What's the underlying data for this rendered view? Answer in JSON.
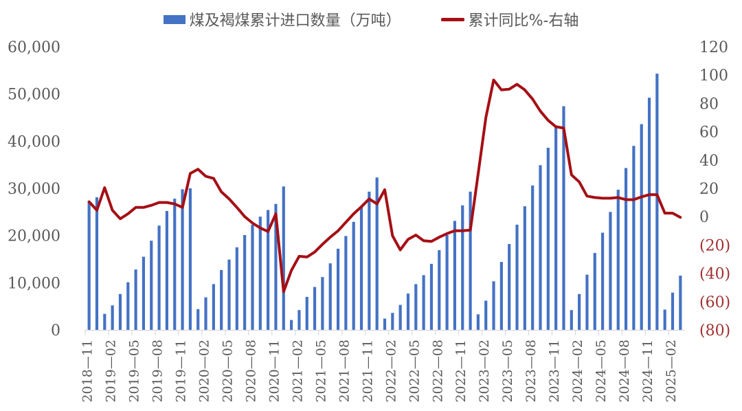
{
  "legend": {
    "bar_label": "煤及褐煤累计进口数量（万吨）",
    "line_label": "累计同比%-右轴"
  },
  "colors": {
    "bar": "#4472C4",
    "line": "#A50F15",
    "axis_text": "#595959",
    "negative_text": "#A03030",
    "axis_line": "#D9D9D9"
  },
  "chart_data": {
    "type": "bar+line",
    "title": "",
    "xlabel": "",
    "ylabel": "",
    "y2label": "",
    "ylim": [
      0,
      60000
    ],
    "y2lim": [
      -80,
      120
    ],
    "yticks": [
      "0",
      "10,000",
      "20,000",
      "30,000",
      "40,000",
      "50,000",
      "60,000"
    ],
    "y2ticks": [
      "(80)",
      "(60)",
      "(40)",
      "(20)",
      "0",
      "20",
      "40",
      "60",
      "80",
      "100",
      "120"
    ],
    "grid": false,
    "legend_position": "top",
    "xtick_labels": [
      "2018-11",
      "2019-02",
      "2019-05",
      "2019-08",
      "2019-11",
      "2020-02",
      "2020-05",
      "2020-08",
      "2020-11",
      "2021-02",
      "2021-05",
      "2021-08",
      "2021-11",
      "2022-02",
      "2022-05",
      "2022-08",
      "2022-11",
      "2023-02",
      "2023-05",
      "2023-08",
      "2023-11",
      "2024-02",
      "2024-05",
      "2024-08",
      "2024-11",
      "2025-02"
    ],
    "categories": [
      "2018-11",
      "2018-12",
      "2019-01",
      "2019-02",
      "2019-03",
      "2019-04",
      "2019-05",
      "2019-06",
      "2019-07",
      "2019-08",
      "2019-09",
      "2019-10",
      "2019-11",
      "2019-12",
      "2020-01",
      "2020-02",
      "2020-03",
      "2020-04",
      "2020-05",
      "2020-06",
      "2020-07",
      "2020-08",
      "2020-09",
      "2020-10",
      "2020-11",
      "2020-12",
      "2021-01",
      "2021-02",
      "2021-03",
      "2021-04",
      "2021-05",
      "2021-06",
      "2021-07",
      "2021-08",
      "2021-09",
      "2021-10",
      "2021-11",
      "2021-12",
      "2022-01",
      "2022-02",
      "2022-03",
      "2022-04",
      "2022-05",
      "2022-06",
      "2022-07",
      "2022-08",
      "2022-09",
      "2022-10",
      "2022-11",
      "2022-12",
      "2023-01",
      "2023-02",
      "2023-03",
      "2023-04",
      "2023-05",
      "2023-06",
      "2023-07",
      "2023-08",
      "2023-09",
      "2023-10",
      "2023-11",
      "2023-12",
      "2024-01",
      "2024-02",
      "2024-03",
      "2024-04",
      "2024-05",
      "2024-06",
      "2024-07",
      "2024-08",
      "2024-09",
      "2024-10",
      "2024-11",
      "2024-12",
      "2025-01",
      "2025-02",
      "2025-03"
    ],
    "series": [
      {
        "name": "煤及褐煤累计进口数量（万吨）",
        "type": "bar",
        "axis": "left",
        "values": [
          27300,
          28100,
          3400,
          5200,
          7600,
          10100,
          12800,
          15500,
          18900,
          22100,
          25200,
          27800,
          29800,
          30000,
          4400,
          6900,
          9700,
          12700,
          14900,
          17500,
          20100,
          22300,
          24000,
          25400,
          26700,
          30400,
          2100,
          4200,
          7000,
          9100,
          11200,
          14100,
          17200,
          19900,
          22900,
          26000,
          29300,
          32300,
          2400,
          3600,
          5300,
          7700,
          9700,
          11600,
          14000,
          16900,
          20100,
          23100,
          26400,
          29300,
          3300,
          6200,
          10300,
          14400,
          18200,
          22300,
          26200,
          30600,
          34900,
          38600,
          43300,
          47400,
          4200,
          7600,
          11700,
          16300,
          20600,
          25000,
          29700,
          34300,
          39000,
          43600,
          49200,
          54300,
          4300,
          7900,
          11500
        ]
      },
      {
        "name": "累计同比%-右轴",
        "type": "line",
        "axis": "right",
        "values": [
          10.5,
          4.5,
          20.5,
          4.5,
          -1.5,
          2,
          6.5,
          6.5,
          8,
          10,
          10,
          9,
          6.5,
          30.5,
          33.5,
          28.5,
          27,
          17.5,
          12.5,
          6.5,
          0,
          -4.5,
          -8,
          -10.5,
          2,
          -53,
          -38,
          -28,
          -28.5,
          -25,
          -19.5,
          -14.5,
          -10,
          -4,
          2,
          7,
          12.5,
          9,
          19,
          -13.5,
          -23.5,
          -16,
          -13,
          -17,
          -17.5,
          -14.5,
          -12,
          -10,
          -10,
          -9.5,
          30,
          70,
          96.5,
          89.5,
          90,
          93.5,
          89.5,
          83,
          74.5,
          68,
          63.5,
          62.5,
          29.5,
          24.5,
          14.5,
          13.5,
          13,
          13,
          13.5,
          12,
          12,
          14,
          15.5,
          15.5,
          2.5,
          2.5,
          -0.5
        ]
      }
    ]
  }
}
